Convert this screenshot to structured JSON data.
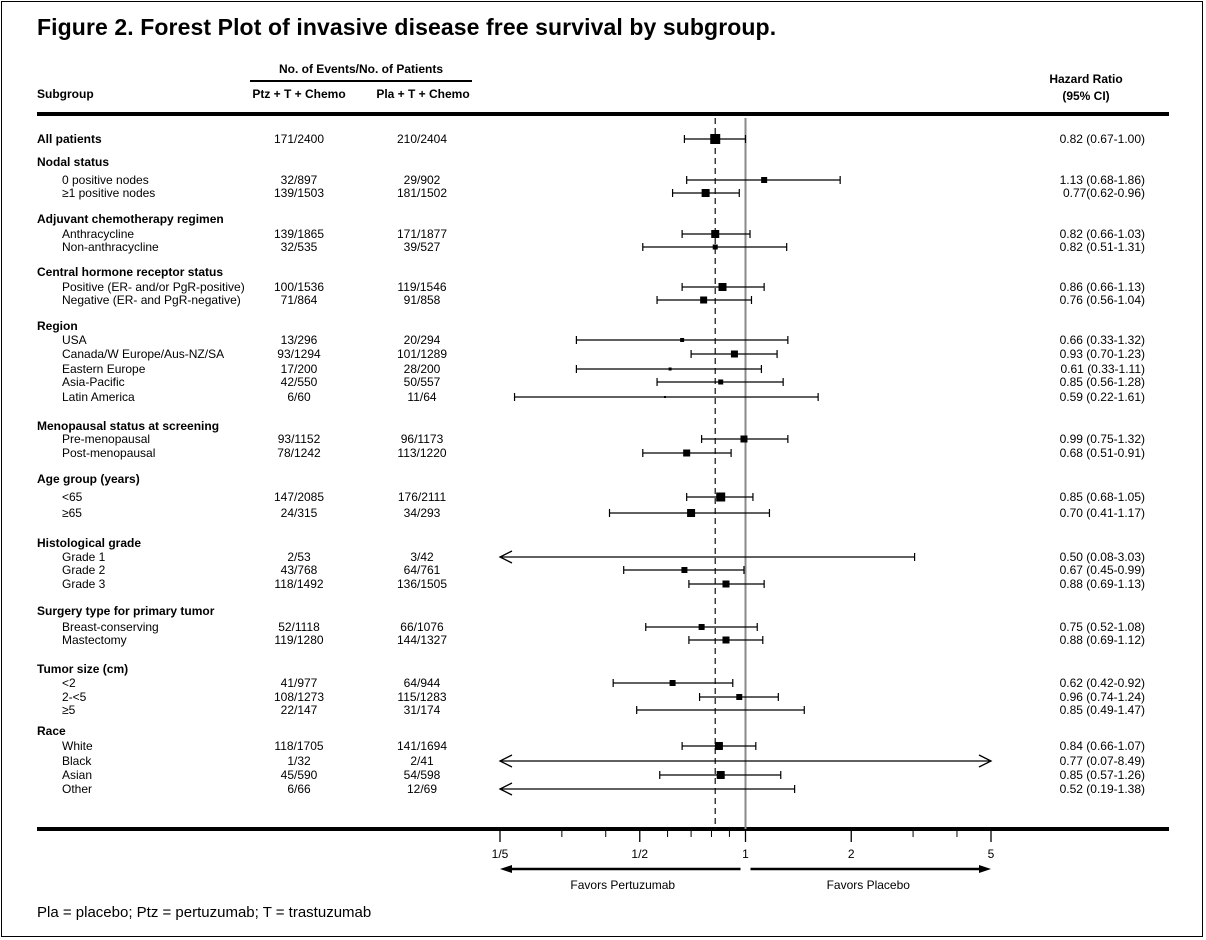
{
  "title": "Figure 2. Forest Plot of invasive disease free survival by subgroup.",
  "header": {
    "events": "No. of Events/No. of Patients",
    "subgroup": "Subgroup",
    "ptz": "Ptz + T + Chemo",
    "pla": "Pla + T + Chemo",
    "hr": "Hazard Ratio",
    "ci": "(95% CI)"
  },
  "footnote": "Pla = placebo; Ptz = pertuzumab; T = trastuzumab",
  "chart_data": {
    "type": "forest",
    "x_scale": "log",
    "xlim": [
      0.2,
      5
    ],
    "x_ticks": [
      {
        "value": 0.2,
        "label": "1/5"
      },
      {
        "value": 0.5,
        "label": "1/2"
      },
      {
        "value": 1,
        "label": "1"
      },
      {
        "value": 2,
        "label": "2"
      },
      {
        "value": 5,
        "label": "5"
      }
    ],
    "reference_line": 1,
    "overall_line": 0.82,
    "favors_left": "Favors Pertuzumab",
    "favors_right": "Favors Placebo",
    "rows": [
      {
        "kind": "row",
        "label": "All patients",
        "bold": true,
        "ptz": "171/2400",
        "pla": "210/2404",
        "hr_text": "0.82 (0.67-1.00)",
        "hr": 0.82,
        "lo": 0.67,
        "hi": 1.0,
        "weight": 10
      },
      {
        "kind": "group",
        "label": "Nodal status"
      },
      {
        "kind": "row",
        "label": "0 positive nodes",
        "ptz": "32/897",
        "pla": "29/902",
        "hr_text": "1.13 (0.68-1.86)",
        "hr": 1.13,
        "lo": 0.68,
        "hi": 1.86,
        "weight": 6
      },
      {
        "kind": "row",
        "label": "≥1 positive nodes",
        "ptz": "139/1503",
        "pla": "181/1502",
        "hr_text": "0.77(0.62-0.96)",
        "hr": 0.77,
        "lo": 0.62,
        "hi": 0.96,
        "weight": 8
      },
      {
        "kind": "group",
        "label": "Adjuvant chemotherapy regimen"
      },
      {
        "kind": "row",
        "label": "Anthracycline",
        "ptz": "139/1865",
        "pla": "171/1877",
        "hr_text": "0.82 (0.66-1.03)",
        "hr": 0.82,
        "lo": 0.66,
        "hi": 1.03,
        "weight": 8
      },
      {
        "kind": "row",
        "label": "Non-anthracycline",
        "ptz": "32/535",
        "pla": "39/527",
        "hr_text": "0.82 (0.51-1.31)",
        "hr": 0.82,
        "lo": 0.51,
        "hi": 1.31,
        "weight": 5
      },
      {
        "kind": "group",
        "label": "Central hormone receptor status"
      },
      {
        "kind": "row",
        "label": "Positive (ER- and/or PgR-positive)",
        "ptz": "100/1536",
        "pla": "119/1546",
        "hr_text": "0.86 (0.66-1.13)",
        "hr": 0.86,
        "lo": 0.66,
        "hi": 1.13,
        "weight": 8
      },
      {
        "kind": "row",
        "label": "Negative (ER- and PgR-negative)",
        "ptz": "71/864",
        "pla": "91/858",
        "hr_text": "0.76 (0.56-1.04)",
        "hr": 0.76,
        "lo": 0.56,
        "hi": 1.04,
        "weight": 7
      },
      {
        "kind": "group",
        "label": "Region"
      },
      {
        "kind": "row",
        "label": "USA",
        "ptz": "13/296",
        "pla": "20/294",
        "hr_text": "0.66 (0.33-1.32)",
        "hr": 0.66,
        "lo": 0.33,
        "hi": 1.32,
        "weight": 4
      },
      {
        "kind": "row",
        "label": "Canada/W Europe/Aus-NZ/SA",
        "ptz": "93/1294",
        "pla": "101/1289",
        "hr_text": "0.93 (0.70-1.23)",
        "hr": 0.93,
        "lo": 0.7,
        "hi": 1.23,
        "weight": 7
      },
      {
        "kind": "row",
        "label": "Eastern Europe",
        "ptz": "17/200",
        "pla": "28/200",
        "hr_text": "0.61 (0.33-1.11)",
        "hr": 0.61,
        "lo": 0.33,
        "hi": 1.11,
        "weight": 3
      },
      {
        "kind": "row",
        "label": "Asia-Pacific",
        "ptz": "42/550",
        "pla": "50/557",
        "hr_text": "0.85 (0.56-1.28)",
        "hr": 0.85,
        "lo": 0.56,
        "hi": 1.28,
        "weight": 5
      },
      {
        "kind": "row",
        "label": "Latin America",
        "ptz": "6/60",
        "pla": "11/64",
        "hr_text": "0.59 (0.22-1.61)",
        "hr": 0.59,
        "lo": 0.22,
        "hi": 1.61,
        "weight": 2
      },
      {
        "kind": "group",
        "label": "Menopausal status at screening"
      },
      {
        "kind": "row",
        "label": "Pre-menopausal",
        "ptz": "93/1152",
        "pla": "96/1173",
        "hr_text": "0.99 (0.75-1.32)",
        "hr": 0.99,
        "lo": 0.75,
        "hi": 1.32,
        "weight": 7
      },
      {
        "kind": "row",
        "label": "Post-menopausal",
        "ptz": "78/1242",
        "pla": "113/1220",
        "hr_text": "0.68 (0.51-0.91)",
        "hr": 0.68,
        "lo": 0.51,
        "hi": 0.91,
        "weight": 7
      },
      {
        "kind": "group",
        "label": "Age group (years)"
      },
      {
        "kind": "row",
        "label": "<65",
        "ptz": "147/2085",
        "pla": "176/2111",
        "hr_text": "0.85 (0.68-1.05)",
        "hr": 0.85,
        "lo": 0.68,
        "hi": 1.05,
        "weight": 9
      },
      {
        "kind": "row",
        "label": "≥65",
        "ptz": "24/315",
        "pla": "34/293",
        "hr_text": "0.70 (0.41-1.17)",
        "hr": 0.7,
        "lo": 0.41,
        "hi": 1.17,
        "weight": 8
      },
      {
        "kind": "group",
        "label": "Histological grade"
      },
      {
        "kind": "row",
        "label": "Grade 1",
        "ptz": "2/53",
        "pla": "3/42",
        "hr_text": "0.50 (0.08-3.03)",
        "hr": 0.5,
        "lo": 0.08,
        "hi": 3.03,
        "weight": 0
      },
      {
        "kind": "row",
        "label": "Grade 2",
        "ptz": "43/768",
        "pla": "64/761",
        "hr_text": "0.67 (0.45-0.99)",
        "hr": 0.67,
        "lo": 0.45,
        "hi": 0.99,
        "weight": 6
      },
      {
        "kind": "row",
        "label": "Grade 3",
        "ptz": "118/1492",
        "pla": "136/1505",
        "hr_text": "0.88 (0.69-1.13)",
        "hr": 0.88,
        "lo": 0.69,
        "hi": 1.13,
        "weight": 7
      },
      {
        "kind": "group",
        "label": "Surgery type for primary tumor"
      },
      {
        "kind": "row",
        "label": "Breast-conserving",
        "ptz": "52/1118",
        "pla": "66/1076",
        "hr_text": "0.75 (0.52-1.08)",
        "hr": 0.75,
        "lo": 0.52,
        "hi": 1.08,
        "weight": 6
      },
      {
        "kind": "row",
        "label": "Mastectomy",
        "ptz": "119/1280",
        "pla": "144/1327",
        "hr_text": "0.88 (0.69-1.12)",
        "hr": 0.88,
        "lo": 0.69,
        "hi": 1.12,
        "weight": 7
      },
      {
        "kind": "group",
        "label": "Tumor size (cm)"
      },
      {
        "kind": "row",
        "label": "<2",
        "ptz": "41/977",
        "pla": "64/944",
        "hr_text": "0.62 (0.42-0.92)",
        "hr": 0.62,
        "lo": 0.42,
        "hi": 0.92,
        "weight": 6
      },
      {
        "kind": "row",
        "label": "2-<5",
        "ptz": "108/1273",
        "pla": "115/1283",
        "hr_text": "0.96 (0.74-1.24)",
        "hr": 0.96,
        "lo": 0.74,
        "hi": 1.24,
        "weight": 6
      },
      {
        "kind": "row",
        "label": "≥5",
        "ptz": "22/147",
        "pla": "31/174",
        "hr_text": "0.85 (0.49-1.47)",
        "hr": 0.85,
        "lo": 0.49,
        "hi": 1.47,
        "weight": 1
      },
      {
        "kind": "group",
        "label": "Race"
      },
      {
        "kind": "row",
        "label": "White",
        "ptz": "118/1705",
        "pla": "141/1694",
        "hr_text": "0.84 (0.66-1.07)",
        "hr": 0.84,
        "lo": 0.66,
        "hi": 1.07,
        "weight": 8
      },
      {
        "kind": "row",
        "label": "Black",
        "ptz": "1/32",
        "pla": "2/41",
        "hr_text": "0.77 (0.07-8.49)",
        "hr": 0.77,
        "lo": 0.07,
        "hi": 8.49,
        "weight": 0
      },
      {
        "kind": "row",
        "label": "Asian",
        "ptz": "45/590",
        "pla": "54/598",
        "hr_text": "0.85 (0.57-1.26)",
        "hr": 0.85,
        "lo": 0.57,
        "hi": 1.26,
        "weight": 8
      },
      {
        "kind": "row",
        "label": "Other",
        "ptz": "6/66",
        "pla": "12/69",
        "hr_text": "0.52 (0.19-1.38)",
        "hr": 0.52,
        "lo": 0.19,
        "hi": 1.38,
        "weight": 0
      }
    ]
  }
}
